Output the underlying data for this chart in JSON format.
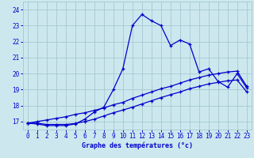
{
  "xlabel": "Graphe des températures (°c)",
  "background_color": "#cce8ee",
  "grid_color": "#aaccd4",
  "line_color": "#0000cc",
  "xlim": [
    -0.5,
    23.5
  ],
  "ylim": [
    16.5,
    24.5
  ],
  "yticks": [
    17,
    18,
    19,
    20,
    21,
    22,
    23,
    24
  ],
  "xticks": [
    0,
    1,
    2,
    3,
    4,
    5,
    6,
    7,
    8,
    9,
    10,
    11,
    12,
    13,
    14,
    15,
    16,
    17,
    18,
    19,
    20,
    21,
    22,
    23
  ],
  "curve1_x": [
    0,
    1,
    2,
    3,
    4,
    5,
    6,
    7,
    8,
    9,
    10,
    11,
    12,
    13,
    14,
    15,
    16,
    17,
    18,
    19,
    20,
    21,
    22,
    23
  ],
  "curve1_y": [
    16.9,
    16.85,
    16.75,
    16.75,
    16.75,
    16.85,
    17.15,
    17.6,
    17.9,
    19.0,
    20.3,
    23.0,
    23.7,
    23.3,
    23.0,
    21.75,
    22.1,
    21.85,
    20.1,
    20.3,
    19.5,
    19.15,
    20.0,
    19.1
  ],
  "curve2_x": [
    0,
    1,
    2,
    3,
    4,
    5,
    6,
    7,
    8,
    9,
    10,
    11,
    12,
    13,
    14,
    15,
    16,
    17,
    18,
    19,
    20,
    21,
    22,
    23
  ],
  "curve2_y": [
    16.9,
    17.0,
    17.1,
    17.2,
    17.3,
    17.45,
    17.55,
    17.7,
    17.85,
    18.05,
    18.2,
    18.45,
    18.65,
    18.85,
    19.05,
    19.2,
    19.4,
    19.6,
    19.75,
    19.9,
    20.0,
    20.1,
    20.15,
    19.2
  ],
  "curve3_x": [
    0,
    1,
    2,
    3,
    4,
    5,
    6,
    7,
    8,
    9,
    10,
    11,
    12,
    13,
    14,
    15,
    16,
    17,
    18,
    19,
    20,
    21,
    22,
    23
  ],
  "curve3_y": [
    16.9,
    16.9,
    16.82,
    16.82,
    16.82,
    16.88,
    17.0,
    17.15,
    17.35,
    17.55,
    17.72,
    17.9,
    18.1,
    18.3,
    18.5,
    18.68,
    18.85,
    19.05,
    19.2,
    19.35,
    19.45,
    19.55,
    19.6,
    18.85
  ]
}
